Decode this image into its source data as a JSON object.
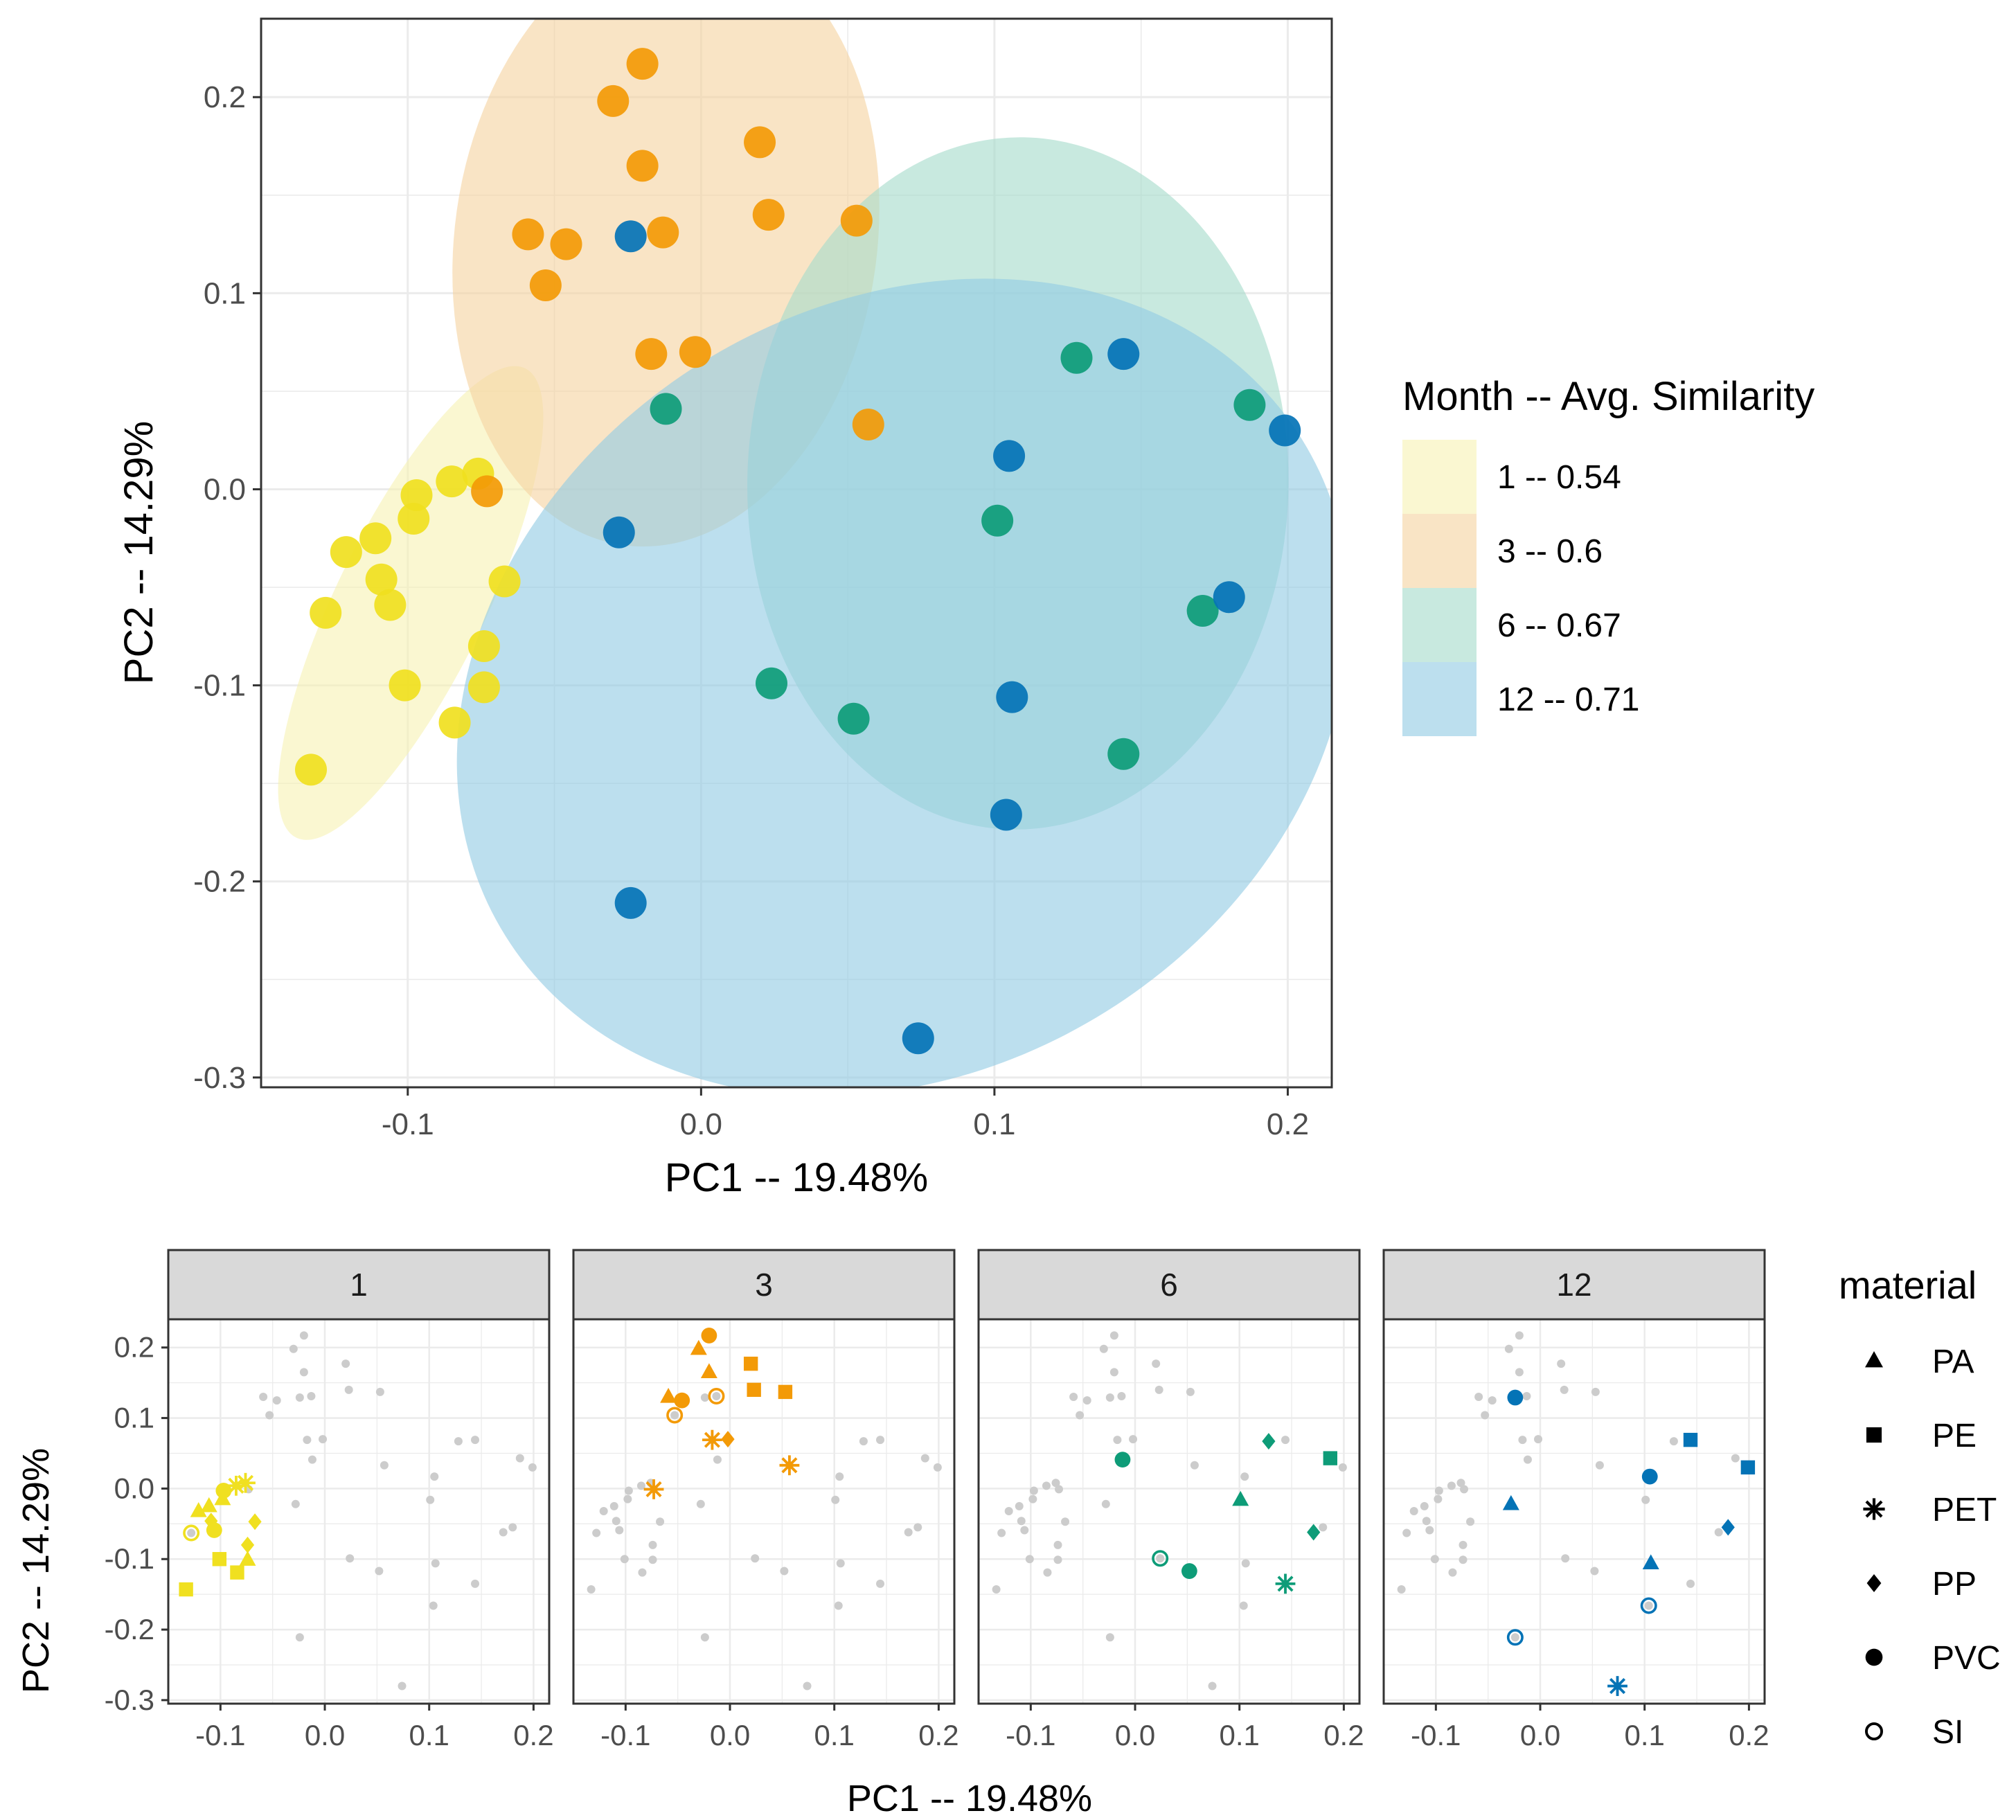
{
  "colors": {
    "month_1": "#F0E020",
    "month_3": "#F39A07",
    "month_6": "#0E9C78",
    "month_12": "#0473B6",
    "ell_1": "#F7F2B4",
    "ell_3": "#F6D3A2",
    "ell_6": "#A6DBCB",
    "ell_12": "#93CBE4",
    "grid": "#EBEBEB",
    "strip_bg": "#D9D9D9",
    "bg_point": "#CCCCCC"
  },
  "main_chart": {
    "xlabel": "PC1 -- 19.48%",
    "ylabel": "PC2 -- 14.29%",
    "xlim": [
      -0.15,
      0.215
    ],
    "ylim": [
      -0.305,
      0.24
    ],
    "xticks": [
      -0.1,
      0.0,
      0.1,
      0.2
    ],
    "xtick_labels": [
      "-0.1",
      "0.0",
      "0.1",
      "0.2"
    ],
    "yticks": [
      -0.3,
      -0.2,
      -0.1,
      0.0,
      0.1,
      0.2
    ],
    "ytick_labels": [
      "-0.3",
      "-0.2",
      "-0.1",
      "0.0",
      "0.1",
      "0.2"
    ],
    "legend": {
      "title": "Month -- Avg. Similarity",
      "entries": [
        {
          "label": "1 -- 0.54",
          "key": "1"
        },
        {
          "label": "3 -- 0.6",
          "key": "3"
        },
        {
          "label": "6 -- 0.67",
          "key": "6"
        },
        {
          "label": "12 -- 0.71",
          "key": "12"
        }
      ]
    }
  },
  "facet_chart": {
    "xlabel": "PC1 -- 19.48%",
    "ylabel": "PC2 -- 14.29%",
    "xlim": [
      -0.15,
      0.215
    ],
    "ylim": [
      -0.305,
      0.24
    ],
    "xticks": [
      -0.1,
      0.0,
      0.1,
      0.2
    ],
    "xtick_labels": [
      "-0.1",
      "0.0",
      "0.1",
      "0.2"
    ],
    "yticks": [
      -0.3,
      -0.2,
      -0.1,
      0.0,
      0.1,
      0.2
    ],
    "ytick_labels": [
      "-0.3",
      "-0.2",
      "-0.1",
      "0.0",
      "0.1",
      "0.2"
    ],
    "panels": [
      "1",
      "3",
      "6",
      "12"
    ],
    "legend": {
      "title": "material",
      "entries": [
        {
          "label": "PA",
          "shape": "triangle"
        },
        {
          "label": "PE",
          "shape": "square"
        },
        {
          "label": "PET",
          "shape": "asterisk"
        },
        {
          "label": "PP",
          "shape": "diamond"
        },
        {
          "label": "PVC",
          "shape": "circle"
        },
        {
          "label": "SI",
          "shape": "open-circle"
        }
      ]
    }
  },
  "chart_data": [
    {
      "type": "scatter",
      "title": "",
      "xlabel": "PC1 -- 19.48%",
      "ylabel": "PC2 -- 14.29%",
      "legend_title": "Month -- Avg. Similarity",
      "grid": true,
      "ellipses": [
        {
          "month": "1",
          "cx": -0.099,
          "cy": -0.058,
          "rx": 0.089,
          "ry": 0.038,
          "angle": -64
        },
        {
          "month": "3",
          "cx": -0.012,
          "cy": 0.127,
          "rx": 0.072,
          "ry": 0.157,
          "angle": 8
        },
        {
          "month": "6",
          "cx": 0.108,
          "cy": 0.003,
          "rx": 0.118,
          "ry": 0.138,
          "angle": -89
        },
        {
          "month": "12",
          "cx": 0.069,
          "cy": -0.101,
          "rx": 0.16,
          "ry": 0.195,
          "angle": -32
        }
      ],
      "series": [
        {
          "name": "1 -- 0.54",
          "month": "1",
          "points": [
            {
              "x": -0.133,
              "y": -0.143,
              "m": "PE"
            },
            {
              "x": -0.128,
              "y": -0.063,
              "m": "SI"
            },
            {
              "x": -0.121,
              "y": -0.032,
              "m": "PA"
            },
            {
              "x": -0.111,
              "y": -0.025,
              "m": "PA"
            },
            {
              "x": -0.109,
              "y": -0.046,
              "m": "PP"
            },
            {
              "x": -0.106,
              "y": -0.059,
              "m": "PVC"
            },
            {
              "x": -0.101,
              "y": -0.1,
              "m": "PE"
            },
            {
              "x": -0.098,
              "y": -0.015,
              "m": "PA"
            },
            {
              "x": -0.097,
              "y": -0.003,
              "m": "PVC"
            },
            {
              "x": -0.085,
              "y": 0.004,
              "m": "PET"
            },
            {
              "x": -0.084,
              "y": -0.119,
              "m": "PE"
            },
            {
              "x": -0.076,
              "y": 0.008,
              "m": "PET"
            },
            {
              "x": -0.074,
              "y": -0.08,
              "m": "PP"
            },
            {
              "x": -0.074,
              "y": -0.101,
              "m": "PA"
            },
            {
              "x": -0.067,
              "y": -0.047,
              "m": "PP"
            }
          ]
        },
        {
          "name": "3 -- 0.6",
          "month": "3",
          "points": [
            {
              "x": -0.073,
              "y": -0.001,
              "m": "PET"
            },
            {
              "x": -0.059,
              "y": 0.13,
              "m": "PA"
            },
            {
              "x": -0.053,
              "y": 0.104,
              "m": "SI"
            },
            {
              "x": -0.046,
              "y": 0.125,
              "m": "PVC"
            },
            {
              "x": -0.03,
              "y": 0.198,
              "m": "PA"
            },
            {
              "x": -0.02,
              "y": 0.217,
              "m": "PVC"
            },
            {
              "x": -0.02,
              "y": 0.165,
              "m": "PA"
            },
            {
              "x": -0.017,
              "y": 0.069,
              "m": "PET"
            },
            {
              "x": -0.013,
              "y": 0.131,
              "m": "SI"
            },
            {
              "x": -0.002,
              "y": 0.07,
              "m": "PP"
            },
            {
              "x": 0.02,
              "y": 0.177,
              "m": "PE"
            },
            {
              "x": 0.023,
              "y": 0.14,
              "m": "PE"
            },
            {
              "x": 0.053,
              "y": 0.137,
              "m": "PE"
            },
            {
              "x": 0.057,
              "y": 0.033,
              "m": "PET"
            }
          ]
        },
        {
          "name": "6 -- 0.67",
          "month": "6",
          "points": [
            {
              "x": -0.012,
              "y": 0.041,
              "m": "PVC"
            },
            {
              "x": 0.024,
              "y": -0.099,
              "m": "SI"
            },
            {
              "x": 0.052,
              "y": -0.117,
              "m": "PVC"
            },
            {
              "x": 0.101,
              "y": -0.016,
              "m": "PA"
            },
            {
              "x": 0.128,
              "y": 0.067,
              "m": "PP"
            },
            {
              "x": 0.144,
              "y": -0.135,
              "m": "PET"
            },
            {
              "x": 0.171,
              "y": -0.062,
              "m": "PP"
            },
            {
              "x": 0.187,
              "y": 0.043,
              "m": "PE"
            }
          ]
        },
        {
          "name": "12 -- 0.71",
          "month": "12",
          "points": [
            {
              "x": -0.024,
              "y": 0.129,
              "m": "PVC"
            },
            {
              "x": -0.028,
              "y": -0.022,
              "m": "PA"
            },
            {
              "x": -0.024,
              "y": -0.211,
              "m": "SI"
            },
            {
              "x": 0.074,
              "y": -0.28,
              "m": "PET"
            },
            {
              "x": 0.104,
              "y": -0.166,
              "m": "SI"
            },
            {
              "x": 0.105,
              "y": 0.017,
              "m": "PVC"
            },
            {
              "x": 0.106,
              "y": -0.106,
              "m": "PA"
            },
            {
              "x": 0.144,
              "y": 0.069,
              "m": "PE"
            },
            {
              "x": 0.18,
              "y": -0.055,
              "m": "PP"
            },
            {
              "x": 0.199,
              "y": 0.03,
              "m": "PE"
            }
          ]
        }
      ]
    }
  ]
}
